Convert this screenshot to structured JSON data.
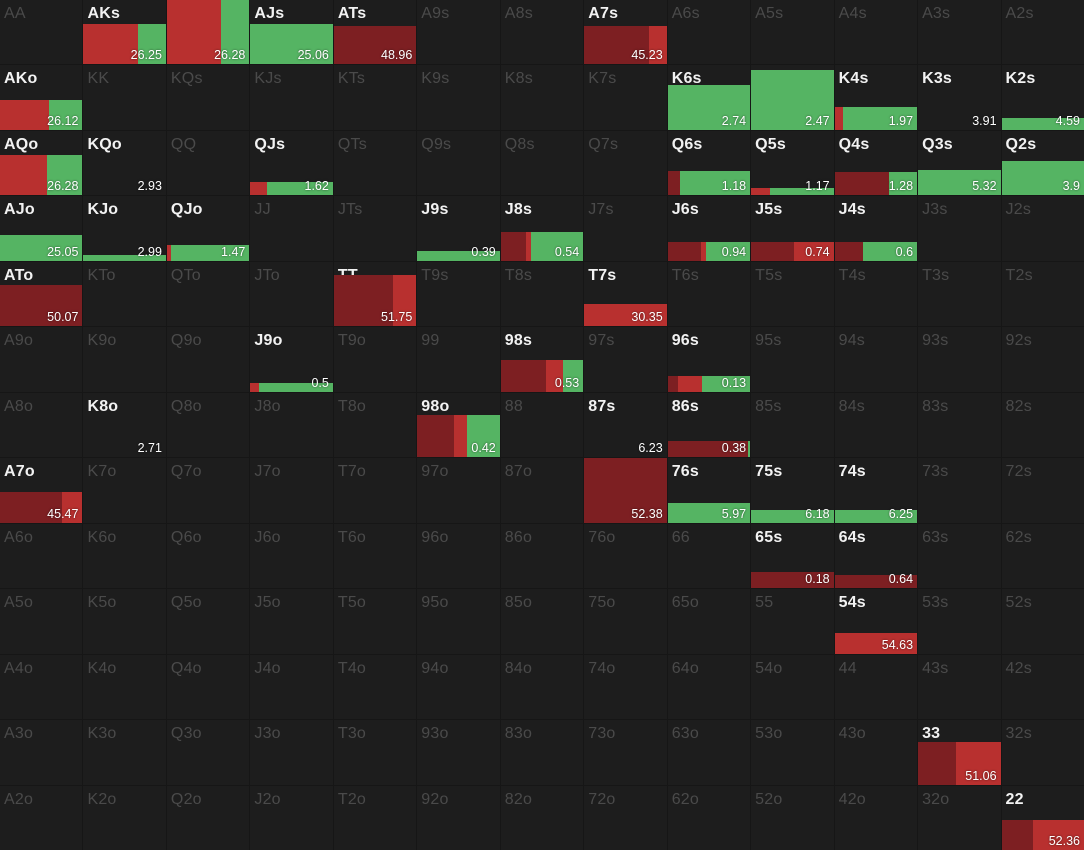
{
  "colors": {
    "background": "#161616",
    "cell": "#1d1d1d",
    "raise_dark": "#7d1f22",
    "raise": "#b8302f",
    "call": "#55b463",
    "active_text": "#f2f2f2",
    "inactive_text": "#4a4a4a"
  },
  "grid": [
    [
      {
        "hand": "AA"
      },
      {
        "hand": "AKs",
        "active": true,
        "freq": 0.63,
        "value": "26.25",
        "segs": [
          0,
          0.66,
          0.34
        ]
      },
      {
        "hand": "AQs",
        "active": true,
        "freq": 1.0,
        "value": "26.28",
        "segs": [
          0,
          0.65,
          0.35
        ]
      },
      {
        "hand": "AJs",
        "active": true,
        "freq": 0.63,
        "value": "25.06",
        "segs": [
          0,
          0,
          1
        ]
      },
      {
        "hand": "ATs",
        "active": true,
        "freq": 0.59,
        "value": "48.96",
        "segs": [
          1,
          0,
          0
        ]
      },
      {
        "hand": "A9s"
      },
      {
        "hand": "A8s"
      },
      {
        "hand": "A7s",
        "active": true,
        "freq": 0.59,
        "value": "45.23",
        "segs": [
          0.78,
          0.22,
          0
        ]
      },
      {
        "hand": "A6s"
      },
      {
        "hand": "A5s"
      },
      {
        "hand": "A4s"
      },
      {
        "hand": "A3s"
      },
      {
        "hand": "A2s"
      }
    ],
    [
      {
        "hand": "AKo",
        "active": true,
        "freq": 0.46,
        "value": "26.12",
        "segs": [
          0,
          0.59,
          0.41
        ]
      },
      {
        "hand": "KK"
      },
      {
        "hand": "KQs"
      },
      {
        "hand": "KJs"
      },
      {
        "hand": "KTs"
      },
      {
        "hand": "K9s"
      },
      {
        "hand": "K8s"
      },
      {
        "hand": "K7s"
      },
      {
        "hand": "K6s",
        "active": true,
        "freq": 0.7,
        "value": "2.74",
        "segs": [
          0,
          0,
          1
        ]
      },
      {
        "hand": "K5s",
        "active": true,
        "freq": 0.93,
        "value": "2.47",
        "segs": [
          0,
          0,
          1
        ]
      },
      {
        "hand": "K4s",
        "active": true,
        "freq": 0.36,
        "value": "1.97",
        "segs": [
          0,
          0.1,
          0.9
        ]
      },
      {
        "hand": "K3s",
        "active": true,
        "freq": 0,
        "value": "3.91",
        "segs": [
          0,
          0,
          1
        ]
      },
      {
        "hand": "K2s",
        "active": true,
        "freq": 0.18,
        "value": "4.59",
        "segs": [
          0,
          0,
          1
        ]
      }
    ],
    [
      {
        "hand": "AQo",
        "active": true,
        "freq": 0.63,
        "value": "26.28",
        "segs": [
          0,
          0.57,
          0.43
        ]
      },
      {
        "hand": "KQo",
        "active": true,
        "freq": 0,
        "value": "2.93",
        "segs": [
          0,
          0,
          1
        ]
      },
      {
        "hand": "QQ"
      },
      {
        "hand": "QJs",
        "active": true,
        "freq": 0.2,
        "value": "1.62",
        "segs": [
          0,
          0.2,
          0.8
        ]
      },
      {
        "hand": "QTs"
      },
      {
        "hand": "Q9s"
      },
      {
        "hand": "Q8s"
      },
      {
        "hand": "Q7s"
      },
      {
        "hand": "Q6s",
        "active": true,
        "freq": 0.38,
        "value": "1.18",
        "segs": [
          0.15,
          0,
          0.85
        ]
      },
      {
        "hand": "Q5s",
        "active": true,
        "freq": 0.11,
        "value": "1.17",
        "segs": [
          0,
          0.23,
          0.77
        ]
      },
      {
        "hand": "Q4s",
        "active": true,
        "freq": 0.36,
        "value": "1.28",
        "segs": [
          0.66,
          0,
          0.34
        ]
      },
      {
        "hand": "Q3s",
        "active": true,
        "freq": 0.4,
        "value": "5.32",
        "segs": [
          0,
          0,
          1
        ]
      },
      {
        "hand": "Q2s",
        "active": true,
        "freq": 0.54,
        "value": "3.9",
        "segs": [
          0,
          0,
          1
        ]
      }
    ],
    [
      {
        "hand": "AJo",
        "active": true,
        "freq": 0.4,
        "value": "25.05",
        "segs": [
          0,
          0,
          1
        ]
      },
      {
        "hand": "KJo",
        "active": true,
        "freq": 0.09,
        "value": "2.99",
        "segs": [
          0,
          0,
          1
        ]
      },
      {
        "hand": "QJo",
        "active": true,
        "freq": 0.25,
        "value": "1.47",
        "segs": [
          0,
          0.05,
          0.95
        ]
      },
      {
        "hand": "JJ"
      },
      {
        "hand": "JTs"
      },
      {
        "hand": "J9s",
        "active": true,
        "freq": 0.15,
        "value": "0.39",
        "segs": [
          0,
          0,
          1
        ]
      },
      {
        "hand": "J8s",
        "active": true,
        "freq": 0.45,
        "value": "0.54",
        "segs": [
          0.3,
          0.07,
          0.63
        ]
      },
      {
        "hand": "J7s"
      },
      {
        "hand": "J6s",
        "active": true,
        "freq": 0.3,
        "value": "0.94",
        "segs": [
          0.4,
          0.06,
          0.54
        ]
      },
      {
        "hand": "J5s",
        "active": true,
        "freq": 0.3,
        "value": "0.74",
        "segs": [
          0.55,
          0.5,
          0
        ]
      },
      {
        "hand": "J4s",
        "active": true,
        "freq": 0.3,
        "value": "0.6",
        "segs": [
          0.35,
          0,
          0.65
        ]
      },
      {
        "hand": "J3s"
      },
      {
        "hand": "J2s"
      }
    ],
    [
      {
        "hand": "ATo",
        "active": true,
        "freq": 0.64,
        "value": "50.07",
        "segs": [
          1,
          0,
          0
        ]
      },
      {
        "hand": "KTo"
      },
      {
        "hand": "QTo"
      },
      {
        "hand": "JTo"
      },
      {
        "hand": "TT",
        "active": true,
        "freq": 0.79,
        "value": "51.75",
        "segs": [
          0.72,
          0.28,
          0
        ]
      },
      {
        "hand": "T9s"
      },
      {
        "hand": "T8s"
      },
      {
        "hand": "T7s",
        "active": true,
        "freq": 0.34,
        "value": "30.35",
        "segs": [
          0,
          1,
          0
        ]
      },
      {
        "hand": "T6s"
      },
      {
        "hand": "T5s"
      },
      {
        "hand": "T4s"
      },
      {
        "hand": "T3s"
      },
      {
        "hand": "T2s"
      }
    ],
    [
      {
        "hand": "A9o"
      },
      {
        "hand": "K9o"
      },
      {
        "hand": "Q9o"
      },
      {
        "hand": "J9o",
        "active": true,
        "freq": 0.14,
        "value": "0.5",
        "segs": [
          0,
          0.1,
          0.9
        ]
      },
      {
        "hand": "T9o"
      },
      {
        "hand": "99"
      },
      {
        "hand": "98s",
        "active": true,
        "freq": 0.5,
        "value": "0.53",
        "segs": [
          0.55,
          0.2,
          0.25
        ]
      },
      {
        "hand": "97s"
      },
      {
        "hand": "96s",
        "active": true,
        "freq": 0.25,
        "value": "0.13",
        "segs": [
          0.12,
          0.3,
          0.58
        ]
      },
      {
        "hand": "95s"
      },
      {
        "hand": "94s"
      },
      {
        "hand": "93s"
      },
      {
        "hand": "92s"
      }
    ],
    [
      {
        "hand": "A8o"
      },
      {
        "hand": "K8o",
        "active": true,
        "freq": 0,
        "value": "2.71",
        "segs": [
          0,
          0,
          1
        ]
      },
      {
        "hand": "Q8o"
      },
      {
        "hand": "J8o"
      },
      {
        "hand": "T8o"
      },
      {
        "hand": "98o",
        "active": true,
        "freq": 0.66,
        "value": "0.42",
        "segs": [
          0.45,
          0.15,
          0.4
        ]
      },
      {
        "hand": "88"
      },
      {
        "hand": "87s",
        "active": true,
        "freq": 0,
        "value": "6.23",
        "segs": [
          0,
          0,
          1
        ]
      },
      {
        "hand": "86s",
        "active": true,
        "freq": 0.25,
        "value": "0.38",
        "segs": [
          0.97,
          0,
          0.03
        ]
      },
      {
        "hand": "85s"
      },
      {
        "hand": "84s"
      },
      {
        "hand": "83s"
      },
      {
        "hand": "82s"
      }
    ],
    [
      {
        "hand": "A7o",
        "active": true,
        "freq": 0.47,
        "value": "45.47",
        "segs": [
          0.75,
          0.25,
          0
        ]
      },
      {
        "hand": "K7o"
      },
      {
        "hand": "Q7o"
      },
      {
        "hand": "J7o"
      },
      {
        "hand": "T7o"
      },
      {
        "hand": "97o"
      },
      {
        "hand": "87o"
      },
      {
        "hand": "77",
        "active": true,
        "freq": 1.0,
        "value": "52.38",
        "segs": [
          1,
          0,
          0
        ]
      },
      {
        "hand": "76s",
        "active": true,
        "freq": 0.3,
        "value": "5.97",
        "segs": [
          0,
          0,
          1
        ]
      },
      {
        "hand": "75s",
        "active": true,
        "freq": 0.2,
        "value": "6.18",
        "segs": [
          0,
          0,
          1
        ]
      },
      {
        "hand": "74s",
        "active": true,
        "freq": 0.2,
        "value": "6.25",
        "segs": [
          0,
          0,
          1
        ]
      },
      {
        "hand": "73s"
      },
      {
        "hand": "72s"
      }
    ],
    [
      {
        "hand": "A6o"
      },
      {
        "hand": "K6o"
      },
      {
        "hand": "Q6o"
      },
      {
        "hand": "J6o"
      },
      {
        "hand": "T6o"
      },
      {
        "hand": "96o"
      },
      {
        "hand": "86o"
      },
      {
        "hand": "76o"
      },
      {
        "hand": "66"
      },
      {
        "hand": "65s",
        "active": true,
        "freq": 0.25,
        "value": "0.18",
        "segs": [
          1,
          0,
          0
        ]
      },
      {
        "hand": "64s",
        "active": true,
        "freq": 0.2,
        "value": "0.64",
        "segs": [
          1,
          0,
          0
        ]
      },
      {
        "hand": "63s"
      },
      {
        "hand": "62s"
      }
    ],
    [
      {
        "hand": "A5o"
      },
      {
        "hand": "K5o"
      },
      {
        "hand": "Q5o"
      },
      {
        "hand": "J5o"
      },
      {
        "hand": "T5o"
      },
      {
        "hand": "95o"
      },
      {
        "hand": "85o"
      },
      {
        "hand": "75o"
      },
      {
        "hand": "65o"
      },
      {
        "hand": "55"
      },
      {
        "hand": "54s",
        "active": true,
        "freq": 0.32,
        "value": "54.63",
        "segs": [
          0,
          1,
          0
        ]
      },
      {
        "hand": "53s"
      },
      {
        "hand": "52s"
      }
    ],
    [
      {
        "hand": "A4o"
      },
      {
        "hand": "K4o"
      },
      {
        "hand": "Q4o"
      },
      {
        "hand": "J4o"
      },
      {
        "hand": "T4o"
      },
      {
        "hand": "94o"
      },
      {
        "hand": "84o"
      },
      {
        "hand": "74o"
      },
      {
        "hand": "64o"
      },
      {
        "hand": "54o"
      },
      {
        "hand": "44"
      },
      {
        "hand": "43s"
      },
      {
        "hand": "42s"
      }
    ],
    [
      {
        "hand": "A3o"
      },
      {
        "hand": "K3o"
      },
      {
        "hand": "Q3o"
      },
      {
        "hand": "J3o"
      },
      {
        "hand": "T3o"
      },
      {
        "hand": "93o"
      },
      {
        "hand": "83o"
      },
      {
        "hand": "73o"
      },
      {
        "hand": "63o"
      },
      {
        "hand": "53o"
      },
      {
        "hand": "43o"
      },
      {
        "hand": "33",
        "active": true,
        "freq": 0.66,
        "value": "51.06",
        "segs": [
          0.46,
          0.54,
          0
        ]
      },
      {
        "hand": "32s"
      }
    ],
    [
      {
        "hand": "A2o"
      },
      {
        "hand": "K2o"
      },
      {
        "hand": "Q2o"
      },
      {
        "hand": "J2o"
      },
      {
        "hand": "T2o"
      },
      {
        "hand": "92o"
      },
      {
        "hand": "82o"
      },
      {
        "hand": "72o"
      },
      {
        "hand": "62o"
      },
      {
        "hand": "52o"
      },
      {
        "hand": "42o"
      },
      {
        "hand": "32o"
      },
      {
        "hand": "22",
        "active": true,
        "freq": 0.46,
        "value": "52.36",
        "segs": [
          0.38,
          0.62,
          0
        ]
      }
    ]
  ]
}
